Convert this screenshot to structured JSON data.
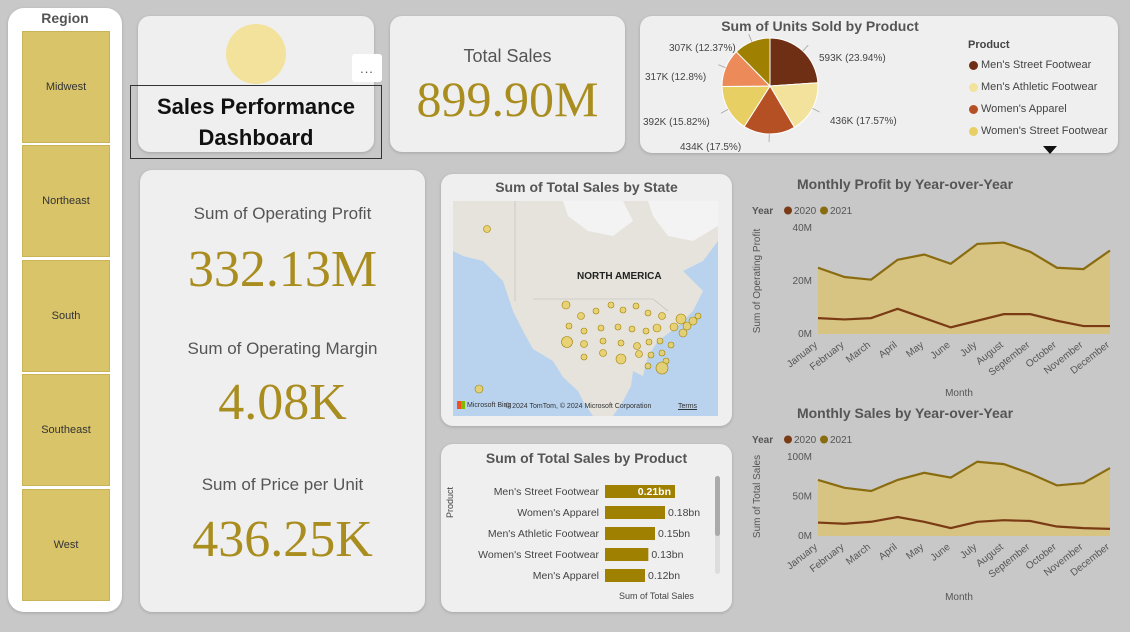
{
  "region_slicer": {
    "title": "Region",
    "items": [
      "Midwest",
      "Northeast",
      "South",
      "Southeast",
      "West"
    ]
  },
  "title_card": {
    "title_line1": "Sales Performance",
    "title_line2": "Dashboard",
    "more_label": "..."
  },
  "total_sales": {
    "label": "Total Sales",
    "value": "899.90M"
  },
  "kpis": [
    {
      "label": "Sum of Operating Profit",
      "value": "332.13M"
    },
    {
      "label": "Sum of Operating Margin",
      "value": "4.08K"
    },
    {
      "label": "Sum of Price per Unit",
      "value": "436.25K"
    }
  ],
  "pie_chart": {
    "title": "Sum of Units Sold by Product",
    "legend_title": "Product",
    "legend_items": [
      "Men's Street Footwear",
      "Men's Athletic Footwear",
      "Women's Apparel",
      "Women's Street Footwear"
    ],
    "labels": [
      "593K (23.94%)",
      "436K (17.57%)",
      "434K (17.5%)",
      "392K (15.82%)",
      "317K (12.8%)",
      "307K (12.37%)"
    ],
    "colors": [
      "#6e2f14",
      "#f2e29c",
      "#b54f24",
      "#e8cf63",
      "#ec8a5a",
      "#a08000"
    ]
  },
  "map": {
    "title": "Sum of Total Sales by State",
    "region_label": "NORTH AMERICA",
    "attribution": "© 2024 TomTom, © 2024 Microsoft Corporation",
    "brand": "Microsoft Bing",
    "terms": "Terms"
  },
  "bar_chart": {
    "title": "Sum of Total Sales by Product",
    "ylabel": "Product",
    "xlabel": "Sum of Total Sales",
    "categories": [
      "Men's Street Footwear",
      "Women's Apparel",
      "Men's Athletic Footwear",
      "Women's Street Footwear",
      "Men's Apparel"
    ],
    "values": [
      0.21,
      0.18,
      0.15,
      0.13,
      0.12
    ],
    "labels": [
      "0.21bn",
      "0.18bn",
      "0.15bn",
      "0.13bn",
      "0.12bn"
    ]
  },
  "chart_data": [
    {
      "type": "line",
      "title": "Monthly Profit by Year-over-Year",
      "legend_title": "Year",
      "xlabel": "Month",
      "ylabel": "Sum of Operating Profit",
      "x": [
        "January",
        "February",
        "March",
        "April",
        "May",
        "June",
        "July",
        "August",
        "September",
        "October",
        "November",
        "December"
      ],
      "yticks": [
        "0M",
        "20M",
        "40M"
      ],
      "ylim": [
        0,
        40
      ],
      "series": [
        {
          "name": "2020",
          "color": "#7a3b14",
          "values": [
            6,
            5.5,
            6,
            9.5,
            6,
            2.5,
            5,
            7.5,
            7.5,
            5,
            3,
            3
          ]
        },
        {
          "name": "2021",
          "color": "#8a6c10",
          "values": [
            25,
            21.5,
            20.5,
            28,
            30,
            26.5,
            34,
            34.5,
            31,
            25,
            24.5,
            31.5
          ]
        }
      ]
    },
    {
      "type": "line",
      "title": "Monthly Sales by Year-over-Year",
      "legend_title": "Year",
      "xlabel": "Month",
      "ylabel": "Sum of Total Sales",
      "x": [
        "January",
        "February",
        "March",
        "April",
        "May",
        "June",
        "July",
        "August",
        "September",
        "October",
        "November",
        "December"
      ],
      "yticks": [
        "0M",
        "50M",
        "100M"
      ],
      "ylim": [
        0,
        100
      ],
      "series": [
        {
          "name": "2020",
          "color": "#7a3b14",
          "values": [
            17,
            15.5,
            18,
            24,
            18,
            10,
            18,
            20,
            19,
            12,
            10,
            9
          ]
        },
        {
          "name": "2021",
          "color": "#8a6c10",
          "values": [
            71,
            61,
            57,
            71,
            80,
            74,
            94,
            91,
            79,
            64,
            67,
            86
          ]
        }
      ]
    }
  ]
}
